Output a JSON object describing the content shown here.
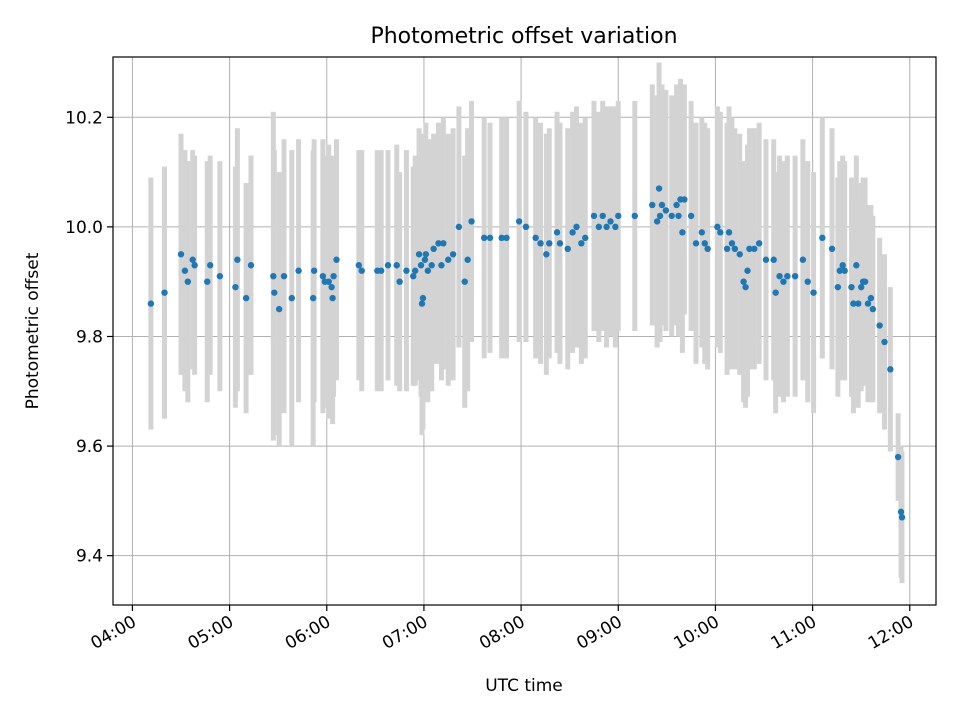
{
  "chart_data": {
    "type": "scatter",
    "title": "Photometric offset variation",
    "xlabel": "UTC time",
    "ylabel": "Photometric offset",
    "x_unit": "hours",
    "xlim": [
      3.8,
      12.27
    ],
    "ylim": [
      9.31,
      10.31
    ],
    "xticks": [
      {
        "value": 4,
        "label": "04:00"
      },
      {
        "value": 5,
        "label": "05:00"
      },
      {
        "value": 6,
        "label": "06:00"
      },
      {
        "value": 7,
        "label": "07:00"
      },
      {
        "value": 8,
        "label": "08:00"
      },
      {
        "value": 9,
        "label": "09:00"
      },
      {
        "value": 10,
        "label": "10:00"
      },
      {
        "value": 11,
        "label": "11:00"
      },
      {
        "value": 12,
        "label": "12:00"
      }
    ],
    "yticks": [
      {
        "value": 9.4,
        "label": "9.4"
      },
      {
        "value": 9.6,
        "label": "9.6"
      },
      {
        "value": 9.8,
        "label": "9.8"
      },
      {
        "value": 10.0,
        "label": "10.0"
      },
      {
        "value": 10.2,
        "label": "10.2"
      }
    ],
    "grid": true,
    "point_color": "#1f77b4",
    "errorbar_color": "#d3d3d3",
    "points": [
      [
        4.19,
        9.86,
        0.23
      ],
      [
        4.33,
        9.88,
        0.23
      ],
      [
        4.5,
        9.95,
        0.22
      ],
      [
        4.54,
        9.92,
        0.22
      ],
      [
        4.57,
        9.9,
        0.22
      ],
      [
        4.62,
        9.94,
        0.2
      ],
      [
        4.64,
        9.93,
        0.2
      ],
      [
        4.77,
        9.9,
        0.22
      ],
      [
        4.8,
        9.93,
        0.2
      ],
      [
        4.9,
        9.91,
        0.21
      ],
      [
        5.06,
        9.89,
        0.22
      ],
      [
        5.08,
        9.94,
        0.24
      ],
      [
        5.17,
        9.87,
        0.21
      ],
      [
        5.22,
        9.93,
        0.2
      ],
      [
        5.45,
        9.91,
        0.3
      ],
      [
        5.46,
        9.88,
        0.26
      ],
      [
        5.51,
        9.85,
        0.25
      ],
      [
        5.56,
        9.91,
        0.25
      ],
      [
        5.64,
        9.87,
        0.27
      ],
      [
        5.71,
        9.92,
        0.24
      ],
      [
        5.86,
        9.87,
        0.27
      ],
      [
        5.87,
        9.92,
        0.24
      ],
      [
        5.96,
        9.91,
        0.25
      ],
      [
        5.98,
        9.9,
        0.23
      ],
      [
        6.02,
        9.9,
        0.25
      ],
      [
        6.05,
        9.89,
        0.22
      ],
      [
        6.06,
        9.87,
        0.23
      ],
      [
        6.07,
        9.91,
        0.22
      ],
      [
        6.1,
        9.94,
        0.22
      ],
      [
        6.33,
        9.93,
        0.21
      ],
      [
        6.36,
        9.92,
        0.22
      ],
      [
        6.52,
        9.92,
        0.22
      ],
      [
        6.56,
        9.92,
        0.22
      ],
      [
        6.63,
        9.93,
        0.21
      ],
      [
        6.72,
        9.93,
        0.22
      ],
      [
        6.75,
        9.9,
        0.2
      ],
      [
        6.82,
        9.92,
        0.22
      ],
      [
        6.89,
        9.91,
        0.2
      ],
      [
        6.91,
        9.92,
        0.21
      ],
      [
        6.95,
        9.95,
        0.23
      ],
      [
        6.97,
        9.93,
        0.24
      ],
      [
        6.98,
        9.86,
        0.24
      ],
      [
        6.99,
        9.87,
        0.24
      ],
      [
        7.01,
        9.94,
        0.23
      ],
      [
        7.02,
        9.95,
        0.24
      ],
      [
        7.04,
        9.92,
        0.24
      ],
      [
        7.08,
        9.93,
        0.23
      ],
      [
        7.1,
        9.96,
        0.21
      ],
      [
        7.15,
        9.97,
        0.22
      ],
      [
        7.18,
        9.93,
        0.21
      ],
      [
        7.2,
        9.97,
        0.23
      ],
      [
        7.25,
        9.94,
        0.23
      ],
      [
        7.3,
        9.95,
        0.23
      ],
      [
        7.36,
        10.0,
        0.22
      ],
      [
        7.42,
        9.9,
        0.23
      ],
      [
        7.45,
        9.94,
        0.24
      ],
      [
        7.49,
        10.01,
        0.22
      ],
      [
        7.62,
        9.98,
        0.22
      ],
      [
        7.68,
        9.98,
        0.21
      ],
      [
        7.8,
        9.98,
        0.22
      ],
      [
        7.85,
        9.98,
        0.22
      ],
      [
        7.98,
        10.01,
        0.22
      ],
      [
        8.05,
        10.0,
        0.21
      ],
      [
        8.15,
        9.98,
        0.22
      ],
      [
        8.2,
        9.97,
        0.22
      ],
      [
        8.26,
        9.95,
        0.22
      ],
      [
        8.29,
        9.97,
        0.21
      ],
      [
        8.37,
        9.99,
        0.22
      ],
      [
        8.4,
        9.97,
        0.22
      ],
      [
        8.48,
        9.96,
        0.22
      ],
      [
        8.53,
        9.99,
        0.22
      ],
      [
        8.57,
        10.0,
        0.22
      ],
      [
        8.62,
        9.97,
        0.22
      ],
      [
        8.66,
        9.98,
        0.22
      ],
      [
        8.75,
        10.02,
        0.21
      ],
      [
        8.8,
        10.0,
        0.21
      ],
      [
        8.84,
        10.02,
        0.21
      ],
      [
        8.88,
        10.0,
        0.22
      ],
      [
        8.92,
        10.01,
        0.21
      ],
      [
        8.97,
        10.0,
        0.22
      ],
      [
        9.0,
        10.02,
        0.21
      ],
      [
        9.17,
        10.02,
        0.21
      ],
      [
        9.35,
        10.04,
        0.22
      ],
      [
        9.4,
        10.01,
        0.23
      ],
      [
        9.42,
        10.07,
        0.23
      ],
      [
        9.43,
        10.02,
        0.23
      ],
      [
        9.45,
        10.04,
        0.22
      ],
      [
        9.49,
        10.03,
        0.22
      ],
      [
        9.55,
        10.02,
        0.22
      ],
      [
        9.6,
        10.04,
        0.22
      ],
      [
        9.62,
        10.02,
        0.22
      ],
      [
        9.64,
        10.05,
        0.22
      ],
      [
        9.66,
        9.99,
        0.22
      ],
      [
        9.68,
        10.05,
        0.21
      ],
      [
        9.75,
        10.02,
        0.21
      ],
      [
        9.8,
        9.97,
        0.22
      ],
      [
        9.86,
        9.99,
        0.21
      ],
      [
        9.89,
        9.97,
        0.22
      ],
      [
        9.92,
        9.96,
        0.22
      ],
      [
        10.02,
        10.0,
        0.22
      ],
      [
        10.05,
        9.99,
        0.22
      ],
      [
        10.12,
        9.96,
        0.23
      ],
      [
        10.14,
        9.99,
        0.23
      ],
      [
        10.17,
        9.97,
        0.23
      ],
      [
        10.2,
        9.96,
        0.22
      ],
      [
        10.25,
        9.95,
        0.22
      ],
      [
        10.29,
        9.9,
        0.22
      ],
      [
        10.31,
        9.89,
        0.22
      ],
      [
        10.33,
        9.92,
        0.23
      ],
      [
        10.35,
        9.96,
        0.22
      ],
      [
        10.4,
        9.96,
        0.22
      ],
      [
        10.45,
        9.97,
        0.22
      ],
      [
        10.52,
        9.94,
        0.22
      ],
      [
        10.6,
        9.94,
        0.22
      ],
      [
        10.62,
        9.88,
        0.22
      ],
      [
        10.66,
        9.91,
        0.22
      ],
      [
        10.7,
        9.9,
        0.22
      ],
      [
        10.74,
        9.91,
        0.22
      ],
      [
        10.82,
        9.91,
        0.22
      ],
      [
        10.9,
        9.94,
        0.22
      ],
      [
        10.95,
        9.9,
        0.22
      ],
      [
        11.01,
        9.88,
        0.22
      ],
      [
        11.1,
        9.98,
        0.22
      ],
      [
        11.2,
        9.96,
        0.22
      ],
      [
        11.26,
        9.89,
        0.2
      ],
      [
        11.28,
        9.92,
        0.2
      ],
      [
        11.31,
        9.93,
        0.2
      ],
      [
        11.33,
        9.92,
        0.2
      ],
      [
        11.4,
        9.89,
        0.2
      ],
      [
        11.42,
        9.86,
        0.2
      ],
      [
        11.45,
        9.93,
        0.2
      ],
      [
        11.47,
        9.86,
        0.19
      ],
      [
        11.5,
        9.89,
        0.19
      ],
      [
        11.52,
        9.9,
        0.19
      ],
      [
        11.54,
        9.9,
        0.19
      ],
      [
        11.57,
        9.86,
        0.18
      ],
      [
        11.6,
        9.87,
        0.17
      ],
      [
        11.62,
        9.85,
        0.17
      ],
      [
        11.69,
        9.82,
        0.16
      ],
      [
        11.74,
        9.79,
        0.16
      ],
      [
        11.8,
        9.74,
        0.15
      ],
      [
        11.88,
        9.58,
        0.08
      ],
      [
        11.91,
        9.48,
        0.12
      ],
      [
        11.92,
        9.47,
        0.12
      ]
    ]
  }
}
